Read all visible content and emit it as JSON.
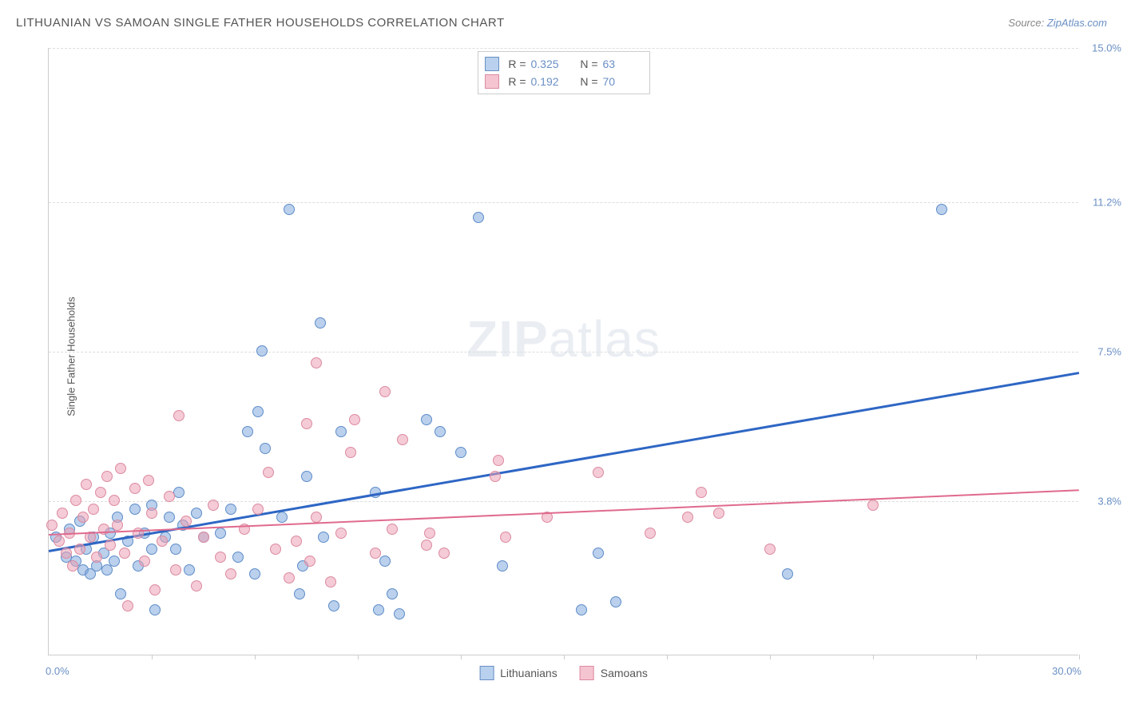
{
  "title": "LITHUANIAN VS SAMOAN SINGLE FATHER HOUSEHOLDS CORRELATION CHART",
  "source_label": "Source:",
  "source_name": "ZipAtlas.com",
  "ylabel": "Single Father Households",
  "watermark_bold": "ZIP",
  "watermark_rest": "atlas",
  "chart": {
    "type": "scatter",
    "xlim": [
      0,
      30
    ],
    "ylim": [
      0,
      15
    ],
    "x_axis_left": "0.0%",
    "x_axis_right": "30.0%",
    "y_ticks": [
      {
        "v": 3.8,
        "label": "3.8%"
      },
      {
        "v": 7.5,
        "label": "7.5%"
      },
      {
        "v": 11.2,
        "label": "11.2%"
      },
      {
        "v": 15.0,
        "label": "15.0%"
      }
    ],
    "x_tick_positions": [
      3.0,
      6.0,
      9.0,
      12.0,
      15.0,
      18.0,
      21.0,
      24.0,
      27.0,
      30.0
    ],
    "background_color": "#ffffff",
    "grid_color": "#dddddd",
    "marker_size": 14,
    "series": [
      {
        "name": "Lithuanians",
        "marker_fill": "rgba(130,170,220,0.55)",
        "marker_stroke": "#5e8cc9",
        "swatch_fill": "#b9d1ee",
        "swatch_stroke": "#6a8fc5",
        "trend_color": "#2e66c4",
        "trend_width": 2.5,
        "R": "0.325",
        "N": "63",
        "trend": {
          "x1": 0,
          "y1": 2.6,
          "x2": 30,
          "y2": 7.0
        },
        "points": [
          [
            0.2,
            2.9
          ],
          [
            0.5,
            2.4
          ],
          [
            0.6,
            3.1
          ],
          [
            0.8,
            2.3
          ],
          [
            0.9,
            3.3
          ],
          [
            1.0,
            2.1
          ],
          [
            1.1,
            2.6
          ],
          [
            1.2,
            2.0
          ],
          [
            1.3,
            2.9
          ],
          [
            1.4,
            2.2
          ],
          [
            1.6,
            2.5
          ],
          [
            1.7,
            2.1
          ],
          [
            1.8,
            3.0
          ],
          [
            1.9,
            2.3
          ],
          [
            2.0,
            3.4
          ],
          [
            2.1,
            1.5
          ],
          [
            2.3,
            2.8
          ],
          [
            2.5,
            3.6
          ],
          [
            2.6,
            2.2
          ],
          [
            2.8,
            3.0
          ],
          [
            3.0,
            2.6
          ],
          [
            3.0,
            3.7
          ],
          [
            3.1,
            1.1
          ],
          [
            3.4,
            2.9
          ],
          [
            3.5,
            3.4
          ],
          [
            3.7,
            2.6
          ],
          [
            3.8,
            4.0
          ],
          [
            3.9,
            3.2
          ],
          [
            4.1,
            2.1
          ],
          [
            4.3,
            3.5
          ],
          [
            4.5,
            2.9
          ],
          [
            5.0,
            3.0
          ],
          [
            5.3,
            3.6
          ],
          [
            5.5,
            2.4
          ],
          [
            5.8,
            5.5
          ],
          [
            6.0,
            2.0
          ],
          [
            6.1,
            6.0
          ],
          [
            6.2,
            7.5
          ],
          [
            6.3,
            5.1
          ],
          [
            6.8,
            3.4
          ],
          [
            7.0,
            11.0
          ],
          [
            7.3,
            1.5
          ],
          [
            7.4,
            2.2
          ],
          [
            7.5,
            4.4
          ],
          [
            7.9,
            8.2
          ],
          [
            8.0,
            2.9
          ],
          [
            8.3,
            1.2
          ],
          [
            8.5,
            5.5
          ],
          [
            9.5,
            4.0
          ],
          [
            9.6,
            1.1
          ],
          [
            9.8,
            2.3
          ],
          [
            10.0,
            1.5
          ],
          [
            10.2,
            1.0
          ],
          [
            11.0,
            5.8
          ],
          [
            11.4,
            5.5
          ],
          [
            12.0,
            5.0
          ],
          [
            12.5,
            10.8
          ],
          [
            13.2,
            2.2
          ],
          [
            15.5,
            1.1
          ],
          [
            16.0,
            2.5
          ],
          [
            16.5,
            1.3
          ],
          [
            21.5,
            2.0
          ],
          [
            26.0,
            11.0
          ]
        ]
      },
      {
        "name": "Samoans",
        "marker_fill": "rgba(235,160,180,0.55)",
        "marker_stroke": "#dc8aa0",
        "swatch_fill": "#f5c4d1",
        "swatch_stroke": "#dc8aa0",
        "trend_color": "#e06a8e",
        "trend_width": 2,
        "R": "0.192",
        "N": "70",
        "trend": {
          "x1": 0,
          "y1": 3.0,
          "x2": 30,
          "y2": 4.1
        },
        "points": [
          [
            0.1,
            3.2
          ],
          [
            0.3,
            2.8
          ],
          [
            0.4,
            3.5
          ],
          [
            0.5,
            2.5
          ],
          [
            0.6,
            3.0
          ],
          [
            0.7,
            2.2
          ],
          [
            0.8,
            3.8
          ],
          [
            0.9,
            2.6
          ],
          [
            1.0,
            3.4
          ],
          [
            1.1,
            4.2
          ],
          [
            1.2,
            2.9
          ],
          [
            1.3,
            3.6
          ],
          [
            1.4,
            2.4
          ],
          [
            1.5,
            4.0
          ],
          [
            1.6,
            3.1
          ],
          [
            1.7,
            4.4
          ],
          [
            1.8,
            2.7
          ],
          [
            1.9,
            3.8
          ],
          [
            2.0,
            3.2
          ],
          [
            2.1,
            4.6
          ],
          [
            2.2,
            2.5
          ],
          [
            2.3,
            1.2
          ],
          [
            2.5,
            4.1
          ],
          [
            2.6,
            3.0
          ],
          [
            2.8,
            2.3
          ],
          [
            2.9,
            4.3
          ],
          [
            3.0,
            3.5
          ],
          [
            3.1,
            1.6
          ],
          [
            3.3,
            2.8
          ],
          [
            3.5,
            3.9
          ],
          [
            3.7,
            2.1
          ],
          [
            3.8,
            5.9
          ],
          [
            4.0,
            3.3
          ],
          [
            4.3,
            1.7
          ],
          [
            4.5,
            2.9
          ],
          [
            4.8,
            3.7
          ],
          [
            5.0,
            2.4
          ],
          [
            5.3,
            2.0
          ],
          [
            5.7,
            3.1
          ],
          [
            6.1,
            3.6
          ],
          [
            6.4,
            4.5
          ],
          [
            6.6,
            2.6
          ],
          [
            7.0,
            1.9
          ],
          [
            7.2,
            2.8
          ],
          [
            7.5,
            5.7
          ],
          [
            7.6,
            2.3
          ],
          [
            7.8,
            7.2
          ],
          [
            7.8,
            3.4
          ],
          [
            8.2,
            1.8
          ],
          [
            8.5,
            3.0
          ],
          [
            8.8,
            5.0
          ],
          [
            8.9,
            5.8
          ],
          [
            9.5,
            2.5
          ],
          [
            9.8,
            6.5
          ],
          [
            10.0,
            3.1
          ],
          [
            10.3,
            5.3
          ],
          [
            11.0,
            2.7
          ],
          [
            11.1,
            3.0
          ],
          [
            11.5,
            2.5
          ],
          [
            13.0,
            4.4
          ],
          [
            13.1,
            4.8
          ],
          [
            13.3,
            2.9
          ],
          [
            14.5,
            3.4
          ],
          [
            16.0,
            4.5
          ],
          [
            17.5,
            3.0
          ],
          [
            18.6,
            3.4
          ],
          [
            19.0,
            4.0
          ],
          [
            19.5,
            3.5
          ],
          [
            21.0,
            2.6
          ],
          [
            24.0,
            3.7
          ]
        ]
      }
    ],
    "legend_bottom": [
      "Lithuanians",
      "Samoans"
    ]
  }
}
